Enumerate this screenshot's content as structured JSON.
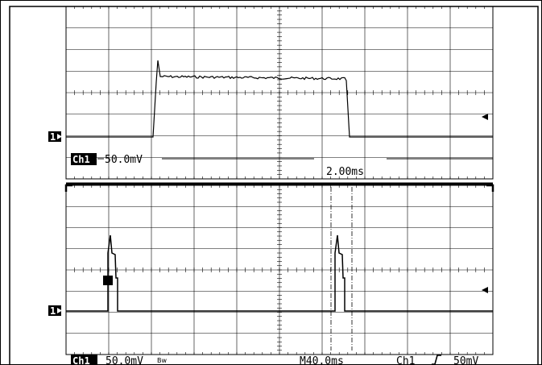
{
  "scope": {
    "colors": {
      "background": "#ffffff",
      "trace": "#000000",
      "grid": "#000000"
    },
    "upper_window": {
      "channel_badge": "Ch1",
      "scale": "50.0mV",
      "time_base": "2.00ms",
      "channel_marker": "1",
      "marker_icon": "arrow-right-icon",
      "trigger_icon": "arrow-left-icon"
    },
    "lower_window": {
      "channel_marker": "1",
      "marker_icon": "arrow-right-icon",
      "trigger_icon": "arrow-left-icon"
    },
    "status_bar": {
      "channel_badge": "Ch1",
      "scale": "50.0mV",
      "bw_mark": "Bw",
      "time_base": "M40.0ms",
      "trigger_source": "Ch1",
      "trigger_slope_icon": "rising-edge-icon",
      "trigger_level": "50mV"
    }
  }
}
